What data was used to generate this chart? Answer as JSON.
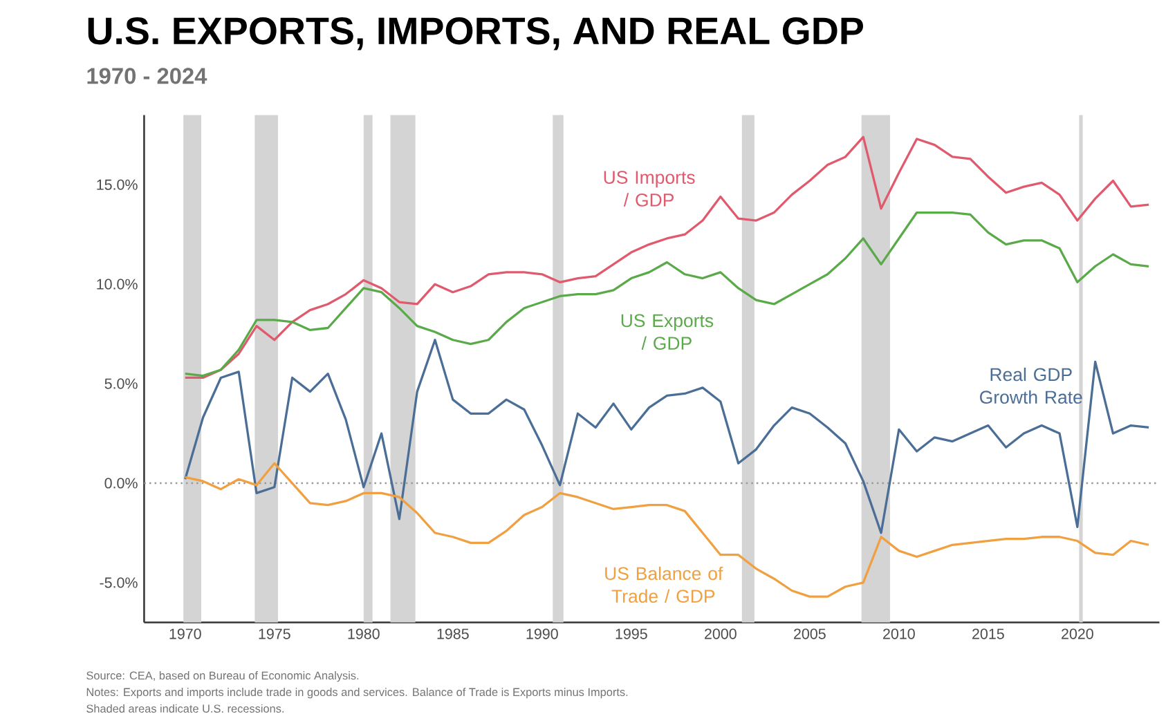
{
  "chart_data": {
    "type": "line",
    "title": "U.S. EXPORTS, IMPORTS, AND REAL GDP",
    "subtitle": "1970 - 2024",
    "x": [
      1970,
      1971,
      1972,
      1973,
      1974,
      1975,
      1976,
      1977,
      1978,
      1979,
      1980,
      1981,
      1982,
      1983,
      1984,
      1985,
      1986,
      1987,
      1988,
      1989,
      1990,
      1991,
      1992,
      1993,
      1994,
      1995,
      1996,
      1997,
      1998,
      1999,
      2000,
      2001,
      2002,
      2003,
      2004,
      2005,
      2006,
      2007,
      2008,
      2009,
      2010,
      2011,
      2012,
      2013,
      2014,
      2015,
      2016,
      2017,
      2018,
      2019,
      2020,
      2021,
      2022,
      2023,
      2024
    ],
    "series": [
      {
        "name": "US Imports / GDP",
        "color": "#e05a6e",
        "values": [
          5.3,
          5.3,
          5.7,
          6.5,
          7.9,
          7.2,
          8.1,
          8.7,
          9.0,
          9.5,
          10.2,
          9.8,
          9.1,
          9.0,
          10.0,
          9.6,
          9.9,
          10.5,
          10.6,
          10.6,
          10.5,
          10.1,
          10.3,
          10.4,
          11.0,
          11.6,
          12.0,
          12.3,
          12.5,
          13.2,
          14.4,
          13.3,
          13.2,
          13.6,
          14.5,
          15.2,
          16.0,
          16.4,
          17.4,
          13.8,
          15.6,
          17.3,
          17.0,
          16.4,
          16.3,
          15.4,
          14.6,
          14.9,
          15.1,
          14.5,
          13.2,
          14.3,
          15.2,
          13.9,
          14.0
        ]
      },
      {
        "name": "US Exports / GDP",
        "color": "#5aaa4a",
        "values": [
          5.5,
          5.4,
          5.7,
          6.7,
          8.2,
          8.2,
          8.1,
          7.7,
          7.8,
          8.8,
          9.8,
          9.6,
          8.8,
          7.9,
          7.6,
          7.2,
          7.0,
          7.2,
          8.1,
          8.8,
          9.1,
          9.4,
          9.5,
          9.5,
          9.7,
          10.3,
          10.6,
          11.1,
          10.5,
          10.3,
          10.6,
          9.8,
          9.2,
          9.0,
          9.5,
          10.0,
          10.5,
          11.3,
          12.3,
          11.0,
          12.3,
          13.6,
          13.6,
          13.6,
          13.5,
          12.6,
          12.0,
          12.2,
          12.2,
          11.8,
          10.1,
          10.9,
          11.5,
          11.0,
          10.9
        ]
      },
      {
        "name": "Real GDP Growth Rate",
        "color": "#4a6e96",
        "values": [
          0.2,
          3.3,
          5.3,
          5.6,
          -0.5,
          -0.2,
          5.3,
          4.6,
          5.5,
          3.2,
          -0.2,
          2.5,
          -1.8,
          4.6,
          7.2,
          4.2,
          3.5,
          3.5,
          4.2,
          3.7,
          1.9,
          -0.1,
          3.5,
          2.8,
          4.0,
          2.7,
          3.8,
          4.4,
          4.5,
          4.8,
          4.1,
          1.0,
          1.7,
          2.9,
          3.8,
          3.5,
          2.8,
          2.0,
          0.1,
          -2.5,
          2.7,
          1.6,
          2.3,
          2.1,
          2.5,
          2.9,
          1.8,
          2.5,
          2.9,
          2.5,
          -2.2,
          6.1,
          2.5,
          2.9,
          2.8
        ]
      },
      {
        "name": "US Balance of Trade / GDP",
        "color": "#f0a040",
        "values": [
          0.3,
          0.1,
          -0.3,
          0.2,
          -0.1,
          1.0,
          0.0,
          -1.0,
          -1.1,
          -0.9,
          -0.5,
          -0.5,
          -0.7,
          -1.5,
          -2.5,
          -2.7,
          -3.0,
          -3.0,
          -2.4,
          -1.6,
          -1.2,
          -0.5,
          -0.7,
          -1.0,
          -1.3,
          -1.2,
          -1.1,
          -1.1,
          -1.4,
          -2.5,
          -3.6,
          -3.6,
          -4.3,
          -4.8,
          -5.4,
          -5.7,
          -5.7,
          -5.2,
          -5.0,
          -2.7,
          -3.4,
          -3.7,
          -3.4,
          -3.1,
          -3.0,
          -2.9,
          -2.8,
          -2.8,
          -2.7,
          -2.7,
          -2.9,
          -3.5,
          -3.6,
          -2.9,
          -3.1
        ]
      }
    ],
    "xlim": [
      1967.7,
      2024.6
    ],
    "ylim": [
      -7,
      18.5
    ],
    "xticks": [
      1970,
      1975,
      1980,
      1985,
      1990,
      1995,
      2000,
      2005,
      2010,
      2015,
      2020
    ],
    "yticks": [
      {
        "value": -5,
        "label": "-5.0%"
      },
      {
        "value": 0,
        "label": "0.0%"
      },
      {
        "value": 5,
        "label": "5.0%"
      },
      {
        "value": 10,
        "label": "10.0%"
      },
      {
        "value": 15,
        "label": "15.0%"
      }
    ],
    "ref_lines": [
      {
        "axis": "y",
        "value": 0,
        "color": "#9a9a9a",
        "line_style": "dotted"
      }
    ],
    "bands": [
      {
        "axis": "x",
        "from": 1969.9,
        "to": 1970.9,
        "color": "#d4d4d4"
      },
      {
        "axis": "x",
        "from": 1973.9,
        "to": 1975.2,
        "color": "#d4d4d4"
      },
      {
        "axis": "x",
        "from": 1980.0,
        "to": 1980.5,
        "color": "#d4d4d4"
      },
      {
        "axis": "x",
        "from": 1981.5,
        "to": 1982.9,
        "color": "#d4d4d4"
      },
      {
        "axis": "x",
        "from": 1990.6,
        "to": 1991.2,
        "color": "#d4d4d4"
      },
      {
        "axis": "x",
        "from": 2001.2,
        "to": 2001.9,
        "color": "#d4d4d4"
      },
      {
        "axis": "x",
        "from": 2007.9,
        "to": 2009.5,
        "color": "#d4d4d4"
      },
      {
        "axis": "x",
        "from": 2020.1,
        "to": 2020.3,
        "color": "#d4d4d4"
      }
    ],
    "annotations": [
      "Source: CEA, based on Bureau of Economic Analysis.",
      "Notes: Exports and imports include trade in goods and services. Balance of Trade is Exports minus Imports.",
      "Shaded areas indicate U.S. recessions."
    ]
  }
}
